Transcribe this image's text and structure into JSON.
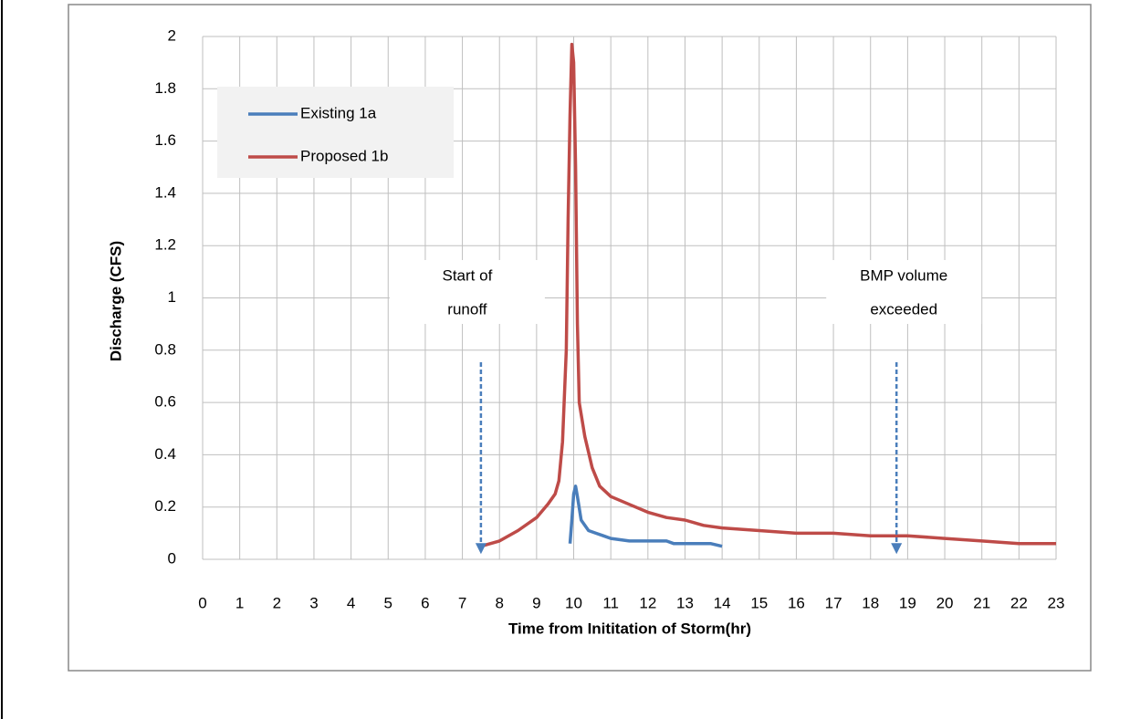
{
  "chart_data": {
    "type": "line",
    "xlabel": "Time from Inititation of Storm(hr)",
    "ylabel": "Discharge (CFS)",
    "xlim": [
      0,
      23
    ],
    "ylim": [
      0,
      2
    ],
    "xticks": [
      0,
      1,
      2,
      3,
      4,
      5,
      6,
      7,
      8,
      9,
      10,
      11,
      12,
      13,
      14,
      15,
      16,
      17,
      18,
      19,
      20,
      21,
      22,
      23
    ],
    "yticks": [
      0,
      0.2,
      0.4,
      0.6,
      0.8,
      1,
      1.2,
      1.4,
      1.6,
      1.8,
      2
    ],
    "grid": true,
    "legend": "upper left",
    "series": [
      {
        "name": "Existing 1a",
        "color": "#4a7ebb",
        "x": [
          9.9,
          9.95,
          10.0,
          10.05,
          10.1,
          10.2,
          10.4,
          10.6,
          10.8,
          11.0,
          11.5,
          12.5,
          12.7,
          13.7,
          14.0
        ],
        "values": [
          0.06,
          0.15,
          0.25,
          0.28,
          0.24,
          0.15,
          0.11,
          0.1,
          0.09,
          0.08,
          0.07,
          0.07,
          0.06,
          0.06,
          0.05
        ]
      },
      {
        "name": "Proposed 1b",
        "color": "#be4b48",
        "x": [
          7.5,
          8,
          8.5,
          9,
          9.3,
          9.5,
          9.6,
          9.7,
          9.8,
          9.85,
          9.9,
          9.95,
          10.0,
          10.05,
          10.1,
          10.15,
          10.3,
          10.5,
          10.7,
          11,
          11.5,
          12,
          12.5,
          13,
          13.5,
          14,
          15,
          16,
          17,
          18,
          19,
          20,
          21,
          22,
          23
        ],
        "values": [
          0.05,
          0.07,
          0.11,
          0.16,
          0.21,
          0.25,
          0.3,
          0.45,
          0.8,
          1.3,
          1.7,
          1.97,
          1.9,
          1.5,
          0.9,
          0.6,
          0.47,
          0.35,
          0.28,
          0.24,
          0.21,
          0.18,
          0.16,
          0.15,
          0.13,
          0.12,
          0.11,
          0.1,
          0.1,
          0.09,
          0.09,
          0.08,
          0.07,
          0.06,
          0.06
        ]
      }
    ],
    "annotations": [
      {
        "lines": [
          "Start of",
          "runoff"
        ],
        "x": 7.5,
        "y": 0.02
      },
      {
        "lines": [
          "BMP volume",
          "exceeded"
        ],
        "x": 18.7,
        "y": 0.02
      }
    ]
  }
}
